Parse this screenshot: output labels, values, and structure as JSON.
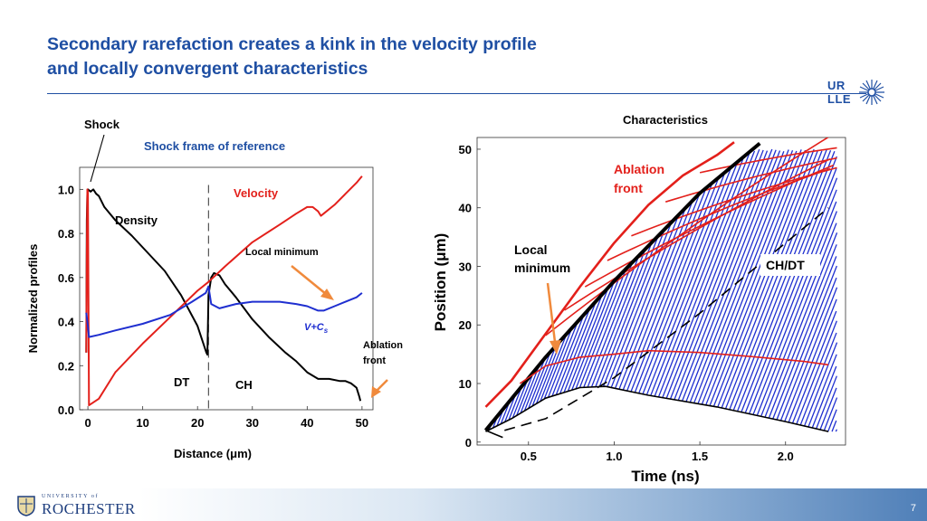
{
  "slide": {
    "title_line1": "Secondary rarefaction creates a kink in the velocity profile",
    "title_line2": "and locally convergent characteristics",
    "logo_line1": "UR",
    "logo_line2": "LLE",
    "footer_small": "UNIVERSITY of",
    "footer_big": "ROCHESTER",
    "page_number": "7"
  },
  "colors": {
    "title": "#1f4fa3",
    "velocity": "#e3201b",
    "vcs": "#1f2fd0",
    "density": "#000000",
    "characteristics_blue": "#1f2fd0",
    "arrow": "#f08a3c"
  },
  "left_labels": {
    "shock": "Shock",
    "frame": "Shock frame of reference",
    "velocity": "Velocity",
    "density": "Density",
    "local_minimum": "Local minimum",
    "vcs_main": "V+C",
    "vcs_sub": "s",
    "ablation_line1": "Ablation",
    "ablation_line2": "front",
    "dt": "DT",
    "ch": "CH"
  },
  "right_labels": {
    "title": "Characteristics",
    "ablation_line1": "Ablation",
    "ablation_line2": "front",
    "local_line1": "Local",
    "local_line2": "minimum",
    "chdt": "CH/DT"
  },
  "chart_data": [
    {
      "type": "line",
      "xlabel": "Distance (μm)",
      "ylabel": "Normalized profiles",
      "xlim": [
        -1.5,
        52
      ],
      "ylim": [
        0,
        1.1
      ],
      "x_ticks": [
        "0",
        "10",
        "20",
        "30",
        "40",
        "50"
      ],
      "y_ticks": [
        "0.0",
        "0.2",
        "0.4",
        "0.6",
        "0.8",
        "1.0"
      ],
      "interface_x": 22,
      "series": [
        {
          "name": "Density",
          "color": "#000000",
          "points": [
            [
              -0.3,
              0.26
            ],
            [
              -0.2,
              0.86
            ],
            [
              -0.1,
              0.98
            ],
            [
              0,
              1.0
            ],
            [
              0.5,
              0.99
            ],
            [
              1,
              1.0
            ],
            [
              1.5,
              0.98
            ],
            [
              2,
              0.97
            ],
            [
              3,
              0.92
            ],
            [
              5,
              0.86
            ],
            [
              8,
              0.79
            ],
            [
              11,
              0.71
            ],
            [
              14,
              0.63
            ],
            [
              17,
              0.52
            ],
            [
              20,
              0.38
            ],
            [
              21.6,
              0.26
            ],
            [
              21.8,
              0.25
            ],
            [
              22,
              0.52
            ],
            [
              22.5,
              0.6
            ],
            [
              23,
              0.62
            ],
            [
              24,
              0.61
            ],
            [
              25,
              0.57
            ],
            [
              27,
              0.51
            ],
            [
              30,
              0.41
            ],
            [
              33,
              0.33
            ],
            [
              36,
              0.26
            ],
            [
              38,
              0.22
            ],
            [
              40,
              0.17
            ],
            [
              42,
              0.14
            ],
            [
              44,
              0.14
            ],
            [
              46,
              0.13
            ],
            [
              47,
              0.13
            ],
            [
              48,
              0.12
            ],
            [
              49,
              0.1
            ],
            [
              49.5,
              0.06
            ],
            [
              49.7,
              0.04
            ]
          ]
        },
        {
          "name": "Velocity",
          "color": "#e3201b",
          "points": [
            [
              -0.3,
              0.26
            ],
            [
              -0.2,
              0.7
            ],
            [
              -0.1,
              1.0
            ],
            [
              0,
              0.99
            ],
            [
              0.2,
              0.02
            ],
            [
              2,
              0.05
            ],
            [
              5,
              0.17
            ],
            [
              10,
              0.3
            ],
            [
              15,
              0.42
            ],
            [
              20,
              0.54
            ],
            [
              22,
              0.58
            ],
            [
              25,
              0.65
            ],
            [
              30,
              0.76
            ],
            [
              35,
              0.84
            ],
            [
              38,
              0.89
            ],
            [
              40,
              0.92
            ],
            [
              41,
              0.92
            ],
            [
              42,
              0.9
            ],
            [
              42.5,
              0.88
            ],
            [
              43,
              0.89
            ],
            [
              45,
              0.93
            ],
            [
              47,
              0.98
            ],
            [
              49,
              1.03
            ],
            [
              50,
              1.06
            ]
          ]
        },
        {
          "name": "V+Cs",
          "color": "#1f2fd0",
          "points": [
            [
              -0.3,
              0.44
            ],
            [
              0,
              0.38
            ],
            [
              0.2,
              0.33
            ],
            [
              2,
              0.34
            ],
            [
              5,
              0.36
            ],
            [
              10,
              0.39
            ],
            [
              15,
              0.43
            ],
            [
              19,
              0.49
            ],
            [
              21.5,
              0.53
            ],
            [
              22,
              0.56
            ],
            [
              22.5,
              0.48
            ],
            [
              24,
              0.46
            ],
            [
              27,
              0.48
            ],
            [
              30,
              0.49
            ],
            [
              35,
              0.49
            ],
            [
              38,
              0.48
            ],
            [
              40,
              0.47
            ],
            [
              42,
              0.45
            ],
            [
              43,
              0.45
            ],
            [
              45,
              0.47
            ],
            [
              47,
              0.49
            ],
            [
              49,
              0.51
            ],
            [
              50,
              0.53
            ]
          ]
        }
      ]
    },
    {
      "type": "line",
      "xlabel": "Time (ns)",
      "ylabel": "Position (μm)",
      "xlim": [
        0.2,
        2.35
      ],
      "ylim": [
        -0.5,
        52
      ],
      "x_ticks": [
        "0.5",
        "1.0",
        "1.5",
        "2.0"
      ],
      "y_ticks": [
        "0",
        "10",
        "20",
        "30",
        "40",
        "50"
      ],
      "series": [
        {
          "name": "Shock",
          "color": "#000000",
          "points": [
            [
              0.25,
              2
            ],
            [
              0.6,
              14.5
            ],
            [
              1.0,
              27.5
            ],
            [
              1.5,
              42.5
            ],
            [
              1.85,
              51
            ]
          ]
        },
        {
          "name": "CH/DT",
          "color": "#000000",
          "points": [
            [
              0.36,
              2
            ],
            [
              0.6,
              4
            ],
            [
              1.0,
              11
            ],
            [
              1.5,
              22
            ],
            [
              2.0,
              34
            ],
            [
              2.25,
              40
            ]
          ]
        },
        {
          "name": "Bottom characteristic",
          "color": "#000000",
          "points": [
            [
              0.25,
              1.8
            ],
            [
              0.4,
              4
            ],
            [
              0.6,
              7.5
            ],
            [
              0.8,
              9.3
            ],
            [
              0.95,
              9.5
            ],
            [
              1.2,
              8
            ],
            [
              1.6,
              6
            ],
            [
              2.0,
              3.5
            ],
            [
              2.25,
              1.8
            ]
          ]
        },
        {
          "name": "Lower branch",
          "color": "#000000",
          "points": [
            [
              0.25,
              2
            ],
            [
              0.3,
              1.4
            ],
            [
              0.35,
              0.8
            ]
          ]
        },
        {
          "name": "Ablation front",
          "color": "#e3201b",
          "points": [
            [
              0.25,
              6
            ],
            [
              0.4,
              10.5
            ],
            [
              0.6,
              18.5
            ],
            [
              0.8,
              26.5
            ],
            [
              1.0,
              34
            ],
            [
              1.2,
              40.5
            ],
            [
              1.4,
              45.5
            ],
            [
              1.6,
              49
            ],
            [
              1.7,
              51.2
            ]
          ]
        },
        {
          "name": "Secondary reflection",
          "color": "#e3201b",
          "points": [
            [
              0.45,
              10
            ],
            [
              0.6,
              13
            ],
            [
              0.8,
              14.5
            ],
            [
              1.0,
              15
            ],
            [
              1.2,
              15.6
            ],
            [
              1.5,
              15.3
            ],
            [
              1.8,
              14.6
            ],
            [
              2.1,
              13.8
            ],
            [
              2.25,
              13.2
            ]
          ]
        }
      ],
      "red_characteristics": [
        {
          "start": [
            0.6,
            18.2
          ],
          "slope": 23
        },
        {
          "start": [
            0.71,
            22.5
          ],
          "slope": 19
        },
        {
          "start": [
            0.83,
            26.5
          ],
          "slope": 16.5
        },
        {
          "start": [
            0.96,
            31.0
          ],
          "slope": 14.0
        },
        {
          "start": [
            1.1,
            35.2
          ],
          "slope": 11.5
        },
        {
          "start": [
            1.3,
            41.0
          ],
          "slope": 9.0
        },
        {
          "start": [
            1.5,
            46.0
          ],
          "slope": 6.5
        }
      ],
      "blue_hatch": {
        "direction": [
          1.0,
          75.0
        ],
        "spacing_ns": 0.023
      }
    }
  ]
}
